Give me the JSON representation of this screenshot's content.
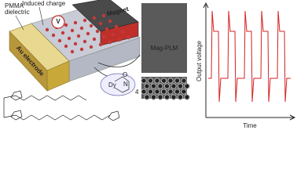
{
  "device": {
    "pmma": "PMMA",
    "dielectric": "dielectric",
    "induced_charge": "Induced charge",
    "magnet": "Magnet",
    "voltmeter": "V",
    "electrode": "Au electrode"
  },
  "micrograph": {
    "label": "Mag-PLM"
  },
  "molecule": {
    "metal": "Dy",
    "oxygen": "O",
    "nitrogen": "N",
    "count": "4"
  },
  "plot": {
    "y_label": "Output voltage",
    "x_label": "Time"
  }
}
